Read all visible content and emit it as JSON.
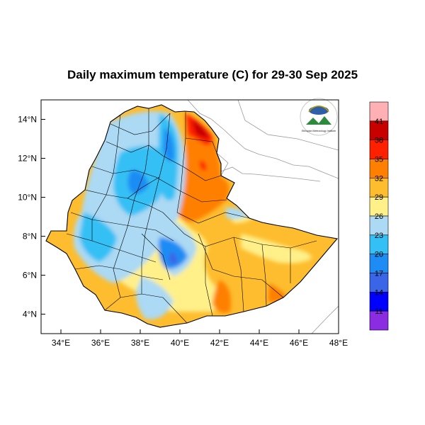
{
  "title": "Daily maximum temperature (C) for 29-30 Sep 2025",
  "map": {
    "region": "Ethiopia",
    "lon_range": [
      33,
      48
    ],
    "lat_range": [
      3,
      15
    ],
    "x_ticks": [
      "34°E",
      "36°E",
      "38°E",
      "40°E",
      "42°E",
      "44°E",
      "46°E",
      "48°E"
    ],
    "y_ticks": [
      "14°N",
      "12°N",
      "10°N",
      "8°N",
      "6°N",
      "4°N"
    ],
    "logo_text": "Ethiopian Meteorology Institute"
  },
  "colorbar": {
    "labels": [
      "41",
      "38",
      "35",
      "32",
      "29",
      "26",
      "23",
      "20",
      "17",
      "14",
      "11"
    ],
    "colors": [
      "#ffb0b4",
      "#c80000",
      "#ff2000",
      "#ff8000",
      "#fdbd2e",
      "#fff08a",
      "#acd9f3",
      "#34c0f5",
      "#1e8cf5",
      "#3a65e6",
      "#0000ff",
      "#8b2be2"
    ]
  },
  "colors": {
    "water": "#ffffff",
    "border": "#000000",
    "coast": "#9a9a9a"
  }
}
